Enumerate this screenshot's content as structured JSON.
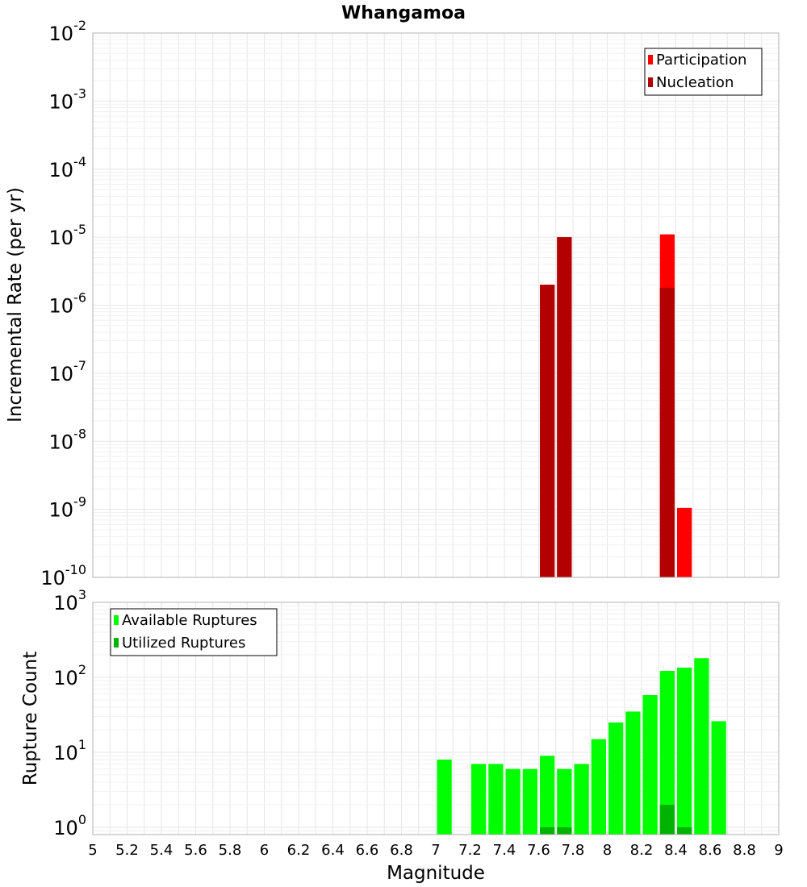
{
  "chart_data": [
    {
      "type": "bar",
      "title": "Whangamoa",
      "xlabel": "",
      "ylabel": "Incremental Rate (per yr)",
      "xlim": [
        5,
        9
      ],
      "ylim": [
        1e-10,
        0.01
      ],
      "yscale": "log",
      "ytick_exponents": [
        -10,
        -9,
        -8,
        -7,
        -6,
        -5,
        -4,
        -3,
        -2
      ],
      "grid": true,
      "legend": {
        "placement": "top-right",
        "entries": [
          "Participation",
          "Nucleation"
        ]
      },
      "bin_width": 0.1,
      "series": [
        {
          "name": "Participation",
          "color": "#ff0000",
          "points": [
            {
              "x": 7.65,
              "y": 2e-06
            },
            {
              "x": 7.75,
              "y": 1e-05
            },
            {
              "x": 8.35,
              "y": 1.1e-05
            },
            {
              "x": 8.45,
              "y": 1.05e-09
            }
          ]
        },
        {
          "name": "Nucleation",
          "color": "#b30000",
          "points": [
            {
              "x": 7.65,
              "y": 2e-06
            },
            {
              "x": 7.75,
              "y": 1e-05
            },
            {
              "x": 8.35,
              "y": 1.8e-06
            }
          ]
        }
      ]
    },
    {
      "type": "bar",
      "title": "",
      "xlabel": "Magnitude",
      "ylabel": "Rupture Count",
      "xlim": [
        5,
        9
      ],
      "ylim": [
        0.8,
        1000
      ],
      "yscale": "log",
      "ytick_exponents": [
        0,
        1,
        2,
        3
      ],
      "xticks": [
        "5",
        "5.2",
        "5.4",
        "5.6",
        "5.8",
        "6",
        "6.2",
        "6.4",
        "6.6",
        "6.8",
        "7",
        "7.2",
        "7.4",
        "7.6",
        "7.8",
        "8",
        "8.2",
        "8.4",
        "8.6",
        "8.8",
        "9"
      ],
      "grid": true,
      "legend": {
        "placement": "top-left",
        "entries": [
          "Available Ruptures",
          "Utilized Ruptures"
        ]
      },
      "bin_width": 0.1,
      "series": [
        {
          "name": "Available Ruptures",
          "color": "#00ff00",
          "points": [
            {
              "x": 7.05,
              "y": 8
            },
            {
              "x": 7.25,
              "y": 7
            },
            {
              "x": 7.35,
              "y": 7
            },
            {
              "x": 7.45,
              "y": 6
            },
            {
              "x": 7.55,
              "y": 6
            },
            {
              "x": 7.65,
              "y": 9
            },
            {
              "x": 7.75,
              "y": 6
            },
            {
              "x": 7.85,
              "y": 7
            },
            {
              "x": 7.95,
              "y": 15
            },
            {
              "x": 8.05,
              "y": 25
            },
            {
              "x": 8.15,
              "y": 35
            },
            {
              "x": 8.25,
              "y": 58
            },
            {
              "x": 8.35,
              "y": 122
            },
            {
              "x": 8.45,
              "y": 135
            },
            {
              "x": 8.55,
              "y": 180
            },
            {
              "x": 8.65,
              "y": 26
            }
          ]
        },
        {
          "name": "Utilized Ruptures",
          "color": "#00b300",
          "points": [
            {
              "x": 7.65,
              "y": 1
            },
            {
              "x": 7.75,
              "y": 1
            },
            {
              "x": 8.35,
              "y": 2
            },
            {
              "x": 8.45,
              "y": 1
            }
          ]
        }
      ]
    }
  ]
}
